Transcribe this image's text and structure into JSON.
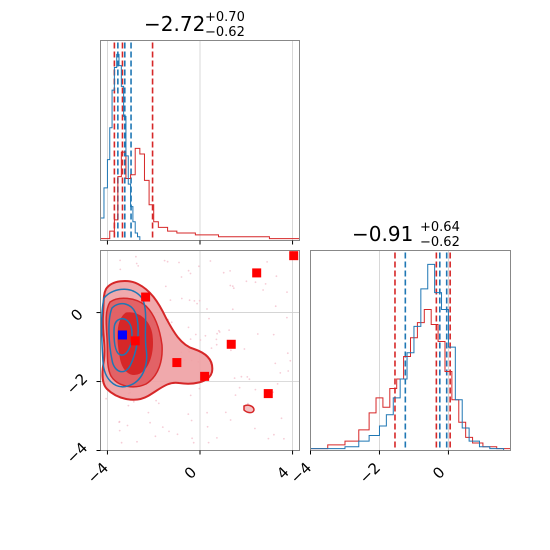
{
  "chart_data": [
    {
      "type": "histogram",
      "panel": "top-left marginal",
      "title": {
        "value": "−2.72",
        "plus": "+0.70",
        "minus": "−0.62"
      },
      "xlim": [
        -4.3,
        4.3
      ],
      "x_ticks": [
        -4,
        0,
        4
      ],
      "x_tick_labels": [
        "",
        "",
        ""
      ],
      "quantiles": {
        "red": [
          -3.7,
          -3.35,
          -2.05
        ],
        "blue": [
          -3.55,
          -3.25,
          -2.98
        ]
      },
      "series": [
        {
          "color": "#d62728",
          "bins": [
            -4.3,
            -3.9,
            -3.7,
            -3.55,
            -3.4,
            -3.2,
            -3.0,
            -2.8,
            -2.6,
            -2.4,
            -2.2,
            -2.0,
            -1.8,
            -1.4,
            -1.0,
            -0.2,
            0.8,
            2.0,
            3.0,
            3.8,
            4.3
          ],
          "heights": [
            0.01,
            0.05,
            0.11,
            0.34,
            0.47,
            0.33,
            0.35,
            0.49,
            0.46,
            0.32,
            0.19,
            0.1,
            0.07,
            0.05,
            0.04,
            0.03,
            0.02,
            0.02,
            0.01,
            0.01
          ]
        },
        {
          "color": "#1f77b4",
          "bins": [
            -4.3,
            -4.15,
            -4.0,
            -3.9,
            -3.8,
            -3.7,
            -3.6,
            -3.5,
            -3.4,
            -3.3,
            -3.2,
            -3.1,
            -3.0,
            -2.9,
            -2.8,
            -2.7,
            -2.6,
            -2.5
          ],
          "heights": [
            0.12,
            0.28,
            0.43,
            0.6,
            0.8,
            0.92,
            0.99,
            0.93,
            0.82,
            0.66,
            0.45,
            0.3,
            0.18,
            0.1,
            0.04,
            0.02,
            0.0
          ]
        }
      ]
    },
    {
      "type": "contour",
      "panel": "bottom-left 2D",
      "xlim": [
        -4.3,
        4.3
      ],
      "ylim": [
        -4.0,
        1.8
      ],
      "x_ticks": [
        -4,
        0,
        4
      ],
      "x_tick_labels": [
        "−4",
        "0",
        "4"
      ],
      "y_ticks": [
        -4,
        -2,
        0
      ],
      "y_tick_labels": [
        "−4",
        "−2",
        "0"
      ],
      "square_markers": [
        {
          "x": 4.05,
          "y": 1.65,
          "color": "#ff0000"
        },
        {
          "x": 2.45,
          "y": 1.15,
          "color": "#ff0000"
        },
        {
          "x": -2.35,
          "y": 0.45,
          "color": "#ff0000"
        },
        {
          "x": 1.35,
          "y": -0.92,
          "color": "#ff0000"
        },
        {
          "x": -1.0,
          "y": -1.45,
          "color": "#ff0000"
        },
        {
          "x": 0.2,
          "y": -1.85,
          "color": "#ff0000"
        },
        {
          "x": 2.95,
          "y": -2.35,
          "color": "#ff0000"
        },
        {
          "x": -2.8,
          "y": -0.82,
          "color": "#ff0000"
        },
        {
          "x": -3.35,
          "y": -0.65,
          "color": "#0000ff"
        }
      ]
    },
    {
      "type": "histogram",
      "panel": "bottom-right marginal",
      "title": {
        "value": "−0.91",
        "plus": "+0.64",
        "minus": "−0.62"
      },
      "xlim": [
        -4.0,
        1.8
      ],
      "x_ticks": [
        -4,
        -2,
        0
      ],
      "x_tick_labels": [
        "−4",
        "−2",
        "0"
      ],
      "quantiles": {
        "red": [
          -1.55,
          -0.35,
          0.05
        ],
        "blue": [
          -1.25,
          -0.25,
          -0.05
        ]
      },
      "series": [
        {
          "color": "#d62728",
          "bins": [
            -4.0,
            -3.5,
            -3.0,
            -2.6,
            -2.3,
            -2.1,
            -1.9,
            -1.7,
            -1.5,
            -1.3,
            -1.1,
            -0.9,
            -0.7,
            -0.5,
            -0.3,
            -0.1,
            0.1,
            0.3,
            0.5,
            0.7,
            1.0,
            1.4,
            1.8
          ],
          "heights": [
            0.01,
            0.03,
            0.05,
            0.11,
            0.2,
            0.28,
            0.23,
            0.33,
            0.38,
            0.5,
            0.6,
            0.68,
            0.75,
            0.67,
            0.58,
            0.42,
            0.27,
            0.15,
            0.07,
            0.04,
            0.02,
            0.01
          ]
        },
        {
          "color": "#1f77b4",
          "bins": [
            -4.0,
            -3.0,
            -2.6,
            -2.3,
            -2.0,
            -1.8,
            -1.6,
            -1.4,
            -1.2,
            -1.0,
            -0.8,
            -0.6,
            -0.4,
            -0.2,
            0.0,
            0.2,
            0.4,
            0.6,
            0.9,
            1.2,
            1.6
          ],
          "heights": [
            0.01,
            0.02,
            0.05,
            0.08,
            0.13,
            0.19,
            0.28,
            0.38,
            0.52,
            0.66,
            0.86,
            0.99,
            0.84,
            0.75,
            0.55,
            0.27,
            0.12,
            0.05,
            0.02,
            0.01
          ]
        }
      ]
    }
  ]
}
